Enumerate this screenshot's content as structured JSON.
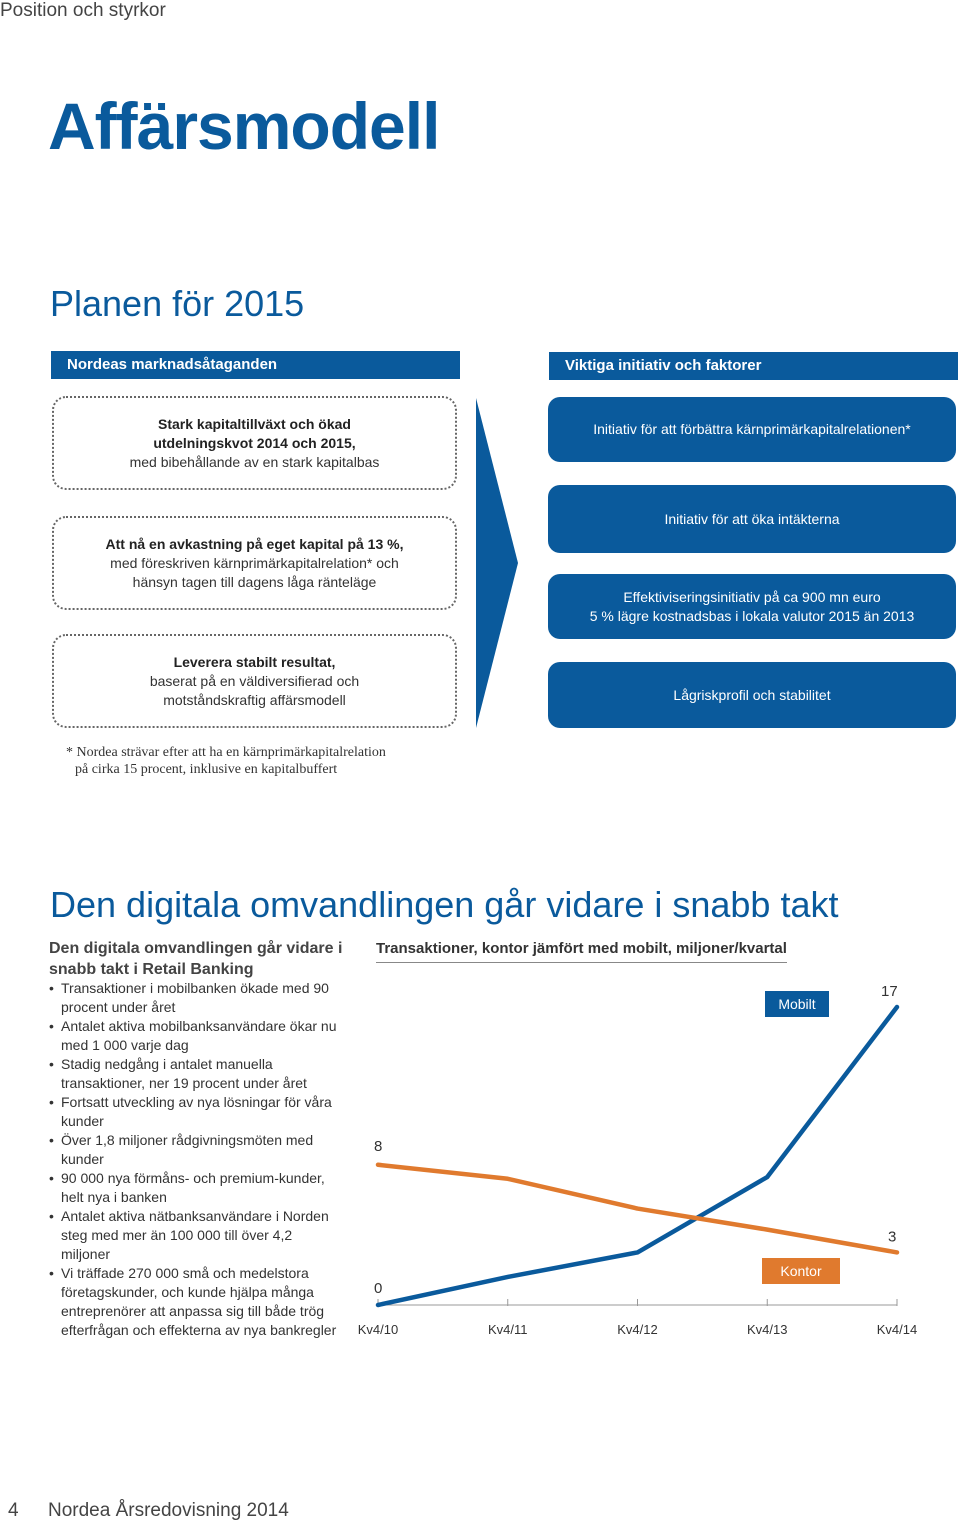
{
  "header": {
    "section": "Position och styrkor"
  },
  "title": "Affärsmodell",
  "plan": {
    "heading": "Planen för 2015",
    "left_header": "Nordeas marknadsåtaganden",
    "right_header": "Viktiga initiativ och faktorer",
    "commitments": [
      {
        "bold": "Stark kapitaltillväxt och ökad utdelningskvot 2014 och 2015,",
        "normal": "med bibehållande av en stark kapitalbas"
      },
      {
        "bold": "Att nå en avkastning på eget kapital på 13 %,",
        "normal": "med föreskriven kärnprimärkapitalrelation* och hänsyn tagen till dagens låga ränteläge"
      },
      {
        "bold": "Leverera stabilt resultat,",
        "normal": "baserat på en väldiversifierad och motståndskraftig affärsmodell"
      }
    ],
    "initiatives": [
      {
        "line1": "Initiativ för att förbättra kärnprimärkapitalrelationen*",
        "line2": ""
      },
      {
        "line1": "Initiativ för att öka intäkterna",
        "line2": ""
      },
      {
        "line1": "Effektiviseringsinitiativ på ca 900 mn euro",
        "line2": "5 % lägre kostnadsbas i lokala valutor 2015 än 2013"
      },
      {
        "line1": "Lågriskprofil och stabilitet",
        "line2": ""
      }
    ],
    "footnote_line1": "* Nordea strävar efter att ha en kärnprimärkapitalrelation",
    "footnote_line2": "på cirka 15 procent, inklusive en kapitalbuffert"
  },
  "digital": {
    "heading": "Den digitala omvandlingen går vidare i snabb takt",
    "subtitle": "Den digitala omvandlingen går vidare i snabb takt i Retail Banking",
    "bullets": [
      "Transaktioner i mobilbanken ökade med 90 procent under året",
      "Antalet aktiva mobilbanksanvändare ökar nu med 1 000 varje dag",
      "Stadig nedgång i antalet manuella transaktioner, ner 19 procent under året",
      "Fortsatt utveckling av nya lösningar för våra kunder",
      "Över 1,8 miljoner rådgivningsmöten med kunder",
      "90 000 nya förmåns- och premium-kunder, helt nya i banken",
      "Antalet aktiva nätbanksanvändare i Norden steg med mer än 100 000 till över 4,2 miljoner",
      "Vi träffade 270 000 små och medelstora företagskunder, och kunde hjälpa många entreprenörer att anpassa sig till både trög efterfrågan och effekterna av nya bankregler"
    ]
  },
  "chart_data": {
    "type": "line",
    "title": "Transaktioner, kontor jämfört med mobilt, miljoner/kvartal",
    "x": [
      "Kv4/10",
      "Kv4/11",
      "Kv4/12",
      "Kv4/13",
      "Kv4/14"
    ],
    "series": [
      {
        "name": "Mobilt",
        "values": [
          0,
          1.6,
          3.0,
          7.3,
          17
        ],
        "color": "#0a5a9c"
      },
      {
        "name": "Kontor",
        "values": [
          8,
          7.2,
          5.5,
          4.3,
          3
        ],
        "color": "#e07a2e"
      }
    ],
    "data_labels": {
      "mobilt_start": "0",
      "mobilt_end": "17",
      "kontor_start": "8",
      "kontor_end": "3"
    },
    "ylim": [
      0,
      17
    ],
    "grid": false
  },
  "footer": {
    "page": "4",
    "text": "Nordea Årsredovisning 2014"
  },
  "colors": {
    "brand_blue": "#0a5a9c",
    "orange": "#e07a2e"
  }
}
